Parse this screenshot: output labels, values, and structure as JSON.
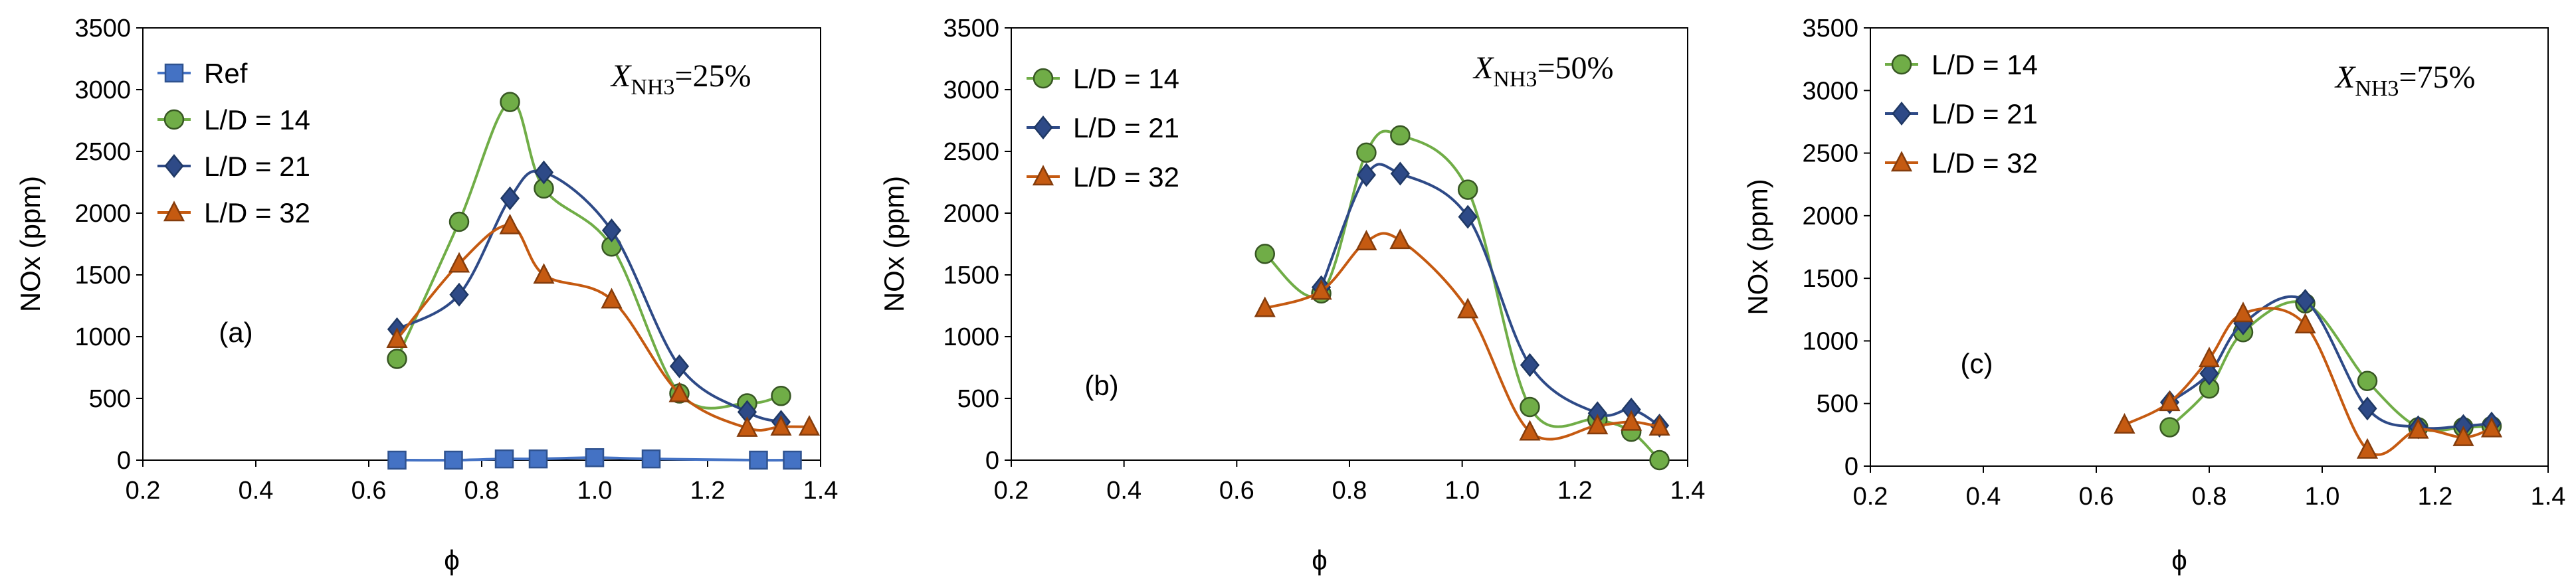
{
  "series_styles": {
    "Ref": {
      "color": "#4472C4",
      "stroke": "#2F528F",
      "marker": "square"
    },
    "L/D = 14": {
      "color": "#70AD47",
      "stroke": "#375623",
      "marker": "circle"
    },
    "L/D = 21": {
      "color": "#2E4A87",
      "stroke": "#1F3864",
      "marker": "diamond"
    },
    "L/D = 32": {
      "color": "#C55A11",
      "stroke": "#843C0C",
      "marker": "triangle"
    }
  },
  "chart_data": [
    {
      "type": "line",
      "panel_label": "(a)",
      "annotation": {
        "prefix": "X",
        "subscript": "NH3",
        "suffix": "=25%"
      },
      "xlabel": "ϕ",
      "ylabel": "NOx (ppm)",
      "xlim": [
        0.2,
        1.4
      ],
      "ylim": [
        0,
        3500
      ],
      "xticks": [
        "0.2",
        "0.4",
        "0.6",
        "0.8",
        "1.0",
        "1.2",
        "1.4"
      ],
      "yticks": [
        "0",
        "500",
        "1000",
        "1500",
        "2000",
        "2500",
        "3000",
        "3500"
      ],
      "series": [
        {
          "name": "Ref",
          "x": [
            0.65,
            0.75,
            0.84,
            0.9,
            1.0,
            1.1,
            1.29,
            1.35
          ],
          "y": [
            0,
            0,
            10,
            10,
            20,
            10,
            0,
            0
          ]
        },
        {
          "name": "L/D = 14",
          "x": [
            0.65,
            0.76,
            0.85,
            0.91,
            1.03,
            1.15,
            1.27,
            1.33
          ],
          "y": [
            820,
            1930,
            2900,
            2200,
            1730,
            540,
            460,
            520
          ]
        },
        {
          "name": "L/D = 21",
          "x": [
            0.65,
            0.76,
            0.85,
            0.91,
            1.03,
            1.15,
            1.27,
            1.33
          ],
          "y": [
            1060,
            1340,
            2120,
            2330,
            1860,
            760,
            390,
            310
          ]
        },
        {
          "name": "L/D = 32",
          "x": [
            0.65,
            0.76,
            0.85,
            0.91,
            1.03,
            1.15,
            1.27,
            1.33,
            1.38
          ],
          "y": [
            980,
            1590,
            1900,
            1500,
            1300,
            540,
            260,
            270,
            270
          ]
        }
      ]
    },
    {
      "type": "line",
      "panel_label": "(b)",
      "annotation": {
        "prefix": "X",
        "subscript": "NH3",
        "suffix": "=50%"
      },
      "xlabel": "ϕ",
      "ylabel": "NOx (ppm)",
      "xlim": [
        0.2,
        1.4
      ],
      "ylim": [
        0,
        3500
      ],
      "xticks": [
        "0.2",
        "0.4",
        "0.6",
        "0.8",
        "1.0",
        "1.2",
        "1.4"
      ],
      "yticks": [
        "0",
        "500",
        "1000",
        "1500",
        "2000",
        "2500",
        "3000",
        "3500"
      ],
      "series": [
        {
          "name": "L/D = 14",
          "x": [
            0.65,
            0.75,
            0.83,
            0.89,
            1.01,
            1.12,
            1.24,
            1.3,
            1.35
          ],
          "y": [
            1670,
            1350,
            2490,
            2630,
            2190,
            430,
            330,
            230,
            0
          ]
        },
        {
          "name": "L/D = 21",
          "x": [
            0.75,
            0.83,
            0.89,
            1.01,
            1.12,
            1.24,
            1.3,
            1.35
          ],
          "y": [
            1400,
            2310,
            2320,
            1970,
            770,
            380,
            410,
            280
          ]
        },
        {
          "name": "L/D = 32",
          "x": [
            0.65,
            0.75,
            0.83,
            0.89,
            1.01,
            1.12,
            1.24,
            1.3,
            1.35
          ],
          "y": [
            1230,
            1370,
            1770,
            1780,
            1220,
            230,
            280,
            310,
            270
          ]
        }
      ]
    },
    {
      "type": "line",
      "panel_label": "(c)",
      "annotation": {
        "prefix": "X",
        "subscript": "NH3",
        "suffix": "=75%"
      },
      "xlabel": "ϕ",
      "ylabel": "NOx (ppm)",
      "xlim": [
        0.2,
        1.4
      ],
      "ylim": [
        0,
        3500
      ],
      "xticks": [
        "0.2",
        "0.4",
        "0.6",
        "0.8",
        "1.0",
        "1.2",
        "1.4"
      ],
      "yticks": [
        "0",
        "500",
        "1000",
        "1500",
        "2000",
        "2500",
        "3000",
        "3500"
      ],
      "series": [
        {
          "name": "L/D = 14",
          "x": [
            0.73,
            0.8,
            0.86,
            0.97,
            1.08,
            1.17,
            1.25,
            1.3
          ],
          "y": [
            310,
            620,
            1070,
            1300,
            680,
            310,
            310,
            320
          ]
        },
        {
          "name": "L/D = 21",
          "x": [
            0.73,
            0.8,
            0.86,
            0.97,
            1.08,
            1.17,
            1.25,
            1.3
          ],
          "y": [
            510,
            740,
            1140,
            1320,
            460,
            310,
            320,
            340
          ]
        },
        {
          "name": "L/D = 32",
          "x": [
            0.65,
            0.73,
            0.8,
            0.86,
            0.97,
            1.08,
            1.17,
            1.25,
            1.3
          ],
          "y": [
            330,
            510,
            860,
            1220,
            1130,
            130,
            290,
            230,
            300
          ]
        }
      ]
    }
  ]
}
